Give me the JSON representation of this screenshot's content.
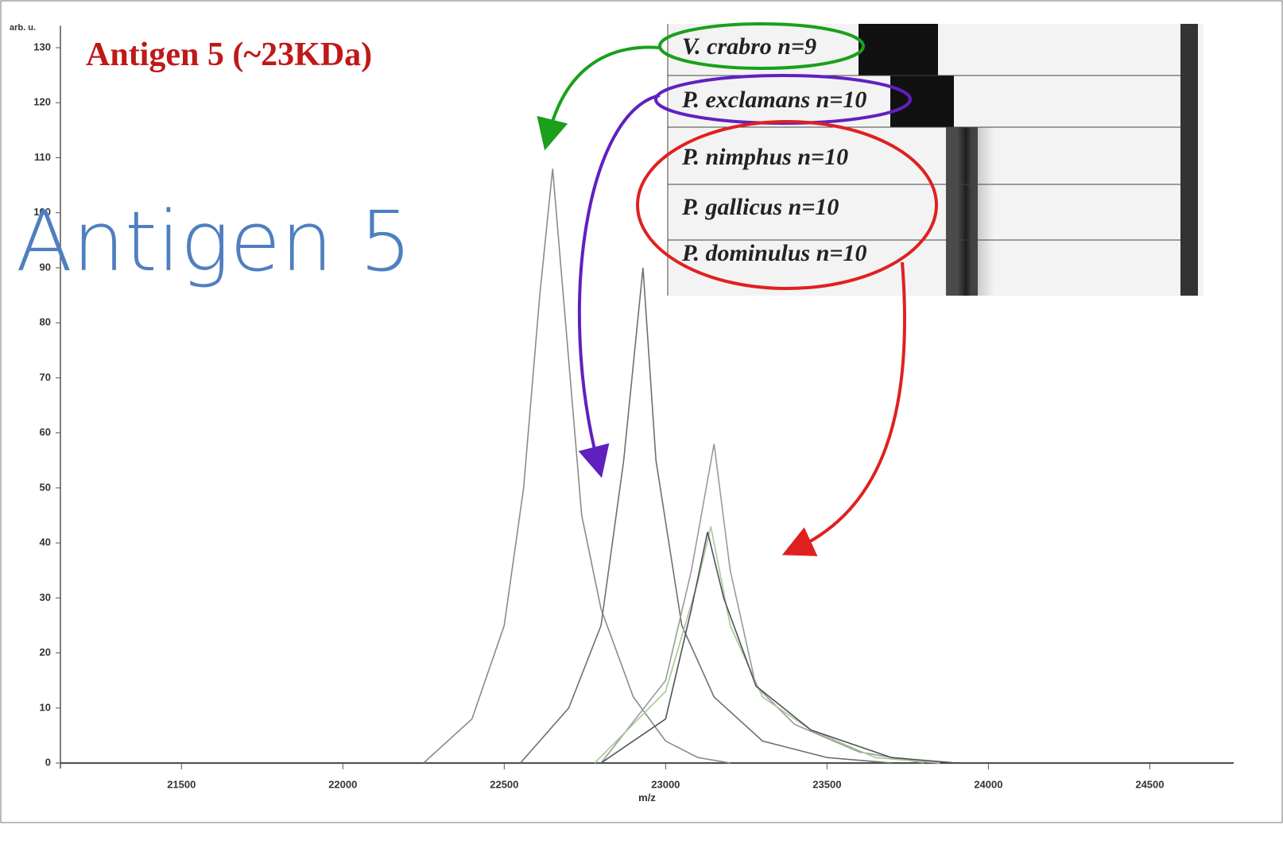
{
  "chart_data": {
    "type": "line",
    "title": "Antigen 5 (~23KDa)",
    "overlay_title": "Antigen 5",
    "x_label": "m/z",
    "y_label": "arb. u.",
    "xlim": [
      21125,
      24760
    ],
    "ylim": [
      -1,
      134
    ],
    "xticks": [
      21500,
      22000,
      22500,
      23000,
      23500,
      24000,
      24500
    ],
    "yticks": [
      0,
      10,
      20,
      30,
      40,
      50,
      60,
      70,
      80,
      90,
      100,
      110,
      120,
      130
    ],
    "series": [
      {
        "name": "V. crabro n=9",
        "color": "#8a8a8a",
        "x": [
          22250,
          22400,
          22500,
          22560,
          22610,
          22650,
          22690,
          22740,
          22800,
          22900,
          23000,
          23100,
          23200
        ],
        "values": [
          0,
          8,
          25,
          50,
          85,
          108,
          80,
          45,
          28,
          12,
          4,
          1,
          0
        ]
      },
      {
        "name": "P. exclamans n=10",
        "color": "#707070",
        "x": [
          22550,
          22700,
          22800,
          22870,
          22930,
          22970,
          23050,
          23150,
          23300,
          23500,
          23700
        ],
        "values": [
          0,
          10,
          25,
          55,
          90,
          55,
          25,
          12,
          4,
          1,
          0
        ]
      },
      {
        "name": "P. nimphus n=10",
        "color": "#9a9a9a",
        "x": [
          22800,
          23000,
          23080,
          23150,
          23200,
          23280,
          23400,
          23600,
          23800
        ],
        "values": [
          0,
          15,
          35,
          58,
          35,
          14,
          7,
          2,
          0
        ]
      },
      {
        "name": "P. gallicus n=10",
        "color": "#a8c890",
        "x": [
          22780,
          23000,
          23100,
          23140,
          23200,
          23300,
          23450,
          23650,
          23850
        ],
        "values": [
          0,
          13,
          33,
          43,
          25,
          12,
          6,
          1,
          0
        ]
      },
      {
        "name": "P. dominulus n=10",
        "color": "#505060",
        "x": [
          22800,
          23000,
          23080,
          23130,
          23180,
          23280,
          23450,
          23700,
          23900
        ],
        "values": [
          0,
          8,
          28,
          42,
          30,
          14,
          6,
          1,
          0
        ]
      }
    ]
  }
}
